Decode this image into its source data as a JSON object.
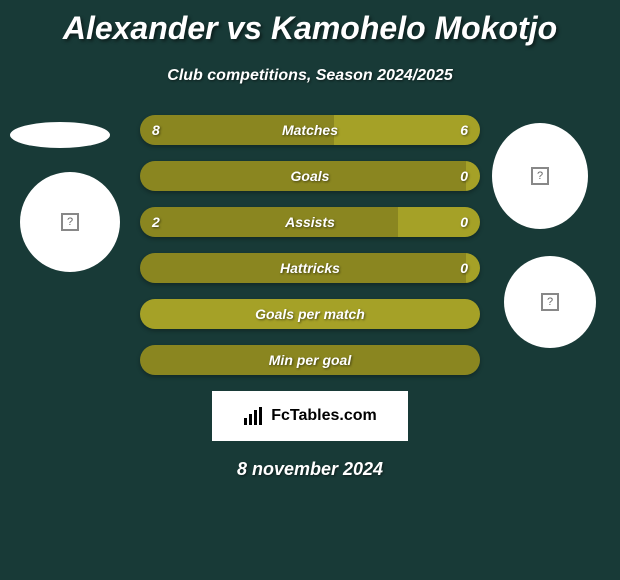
{
  "header": {
    "title": "Alexander vs Kamohelo Mokotjo",
    "subtitle": "Club competitions, Season 2024/2025"
  },
  "stats": [
    {
      "label": "Matches",
      "left_value": "8",
      "right_value": "6",
      "left_pct": 57,
      "right_pct": 43,
      "left_color": "#8a8620",
      "right_color": "#a5a127"
    },
    {
      "label": "Goals",
      "left_value": "",
      "right_value": "0",
      "left_pct": 96,
      "right_pct": 4,
      "left_color": "#8a8620",
      "right_color": "#a5a127"
    },
    {
      "label": "Assists",
      "left_value": "2",
      "right_value": "0",
      "left_pct": 76,
      "right_pct": 24,
      "left_color": "#8a8620",
      "right_color": "#a5a127"
    },
    {
      "label": "Hattricks",
      "left_value": "",
      "right_value": "0",
      "left_pct": 96,
      "right_pct": 4,
      "left_color": "#8a8620",
      "right_color": "#a5a127"
    },
    {
      "label": "Goals per match",
      "left_value": "",
      "right_value": "",
      "left_pct": 100,
      "right_pct": 0,
      "left_color": "#a5a127",
      "right_color": "#a5a127"
    },
    {
      "label": "Min per goal",
      "left_value": "",
      "right_value": "",
      "left_pct": 100,
      "right_pct": 0,
      "left_color": "#8a8620",
      "right_color": "#a5a127"
    }
  ],
  "footer": {
    "brand": "FcTables.com",
    "date": "8 november 2024"
  },
  "placeholder_icon": "?",
  "colors": {
    "background": "#183a37",
    "bar_dark": "#8a8620",
    "bar_light": "#a5a127",
    "text": "#ffffff"
  }
}
